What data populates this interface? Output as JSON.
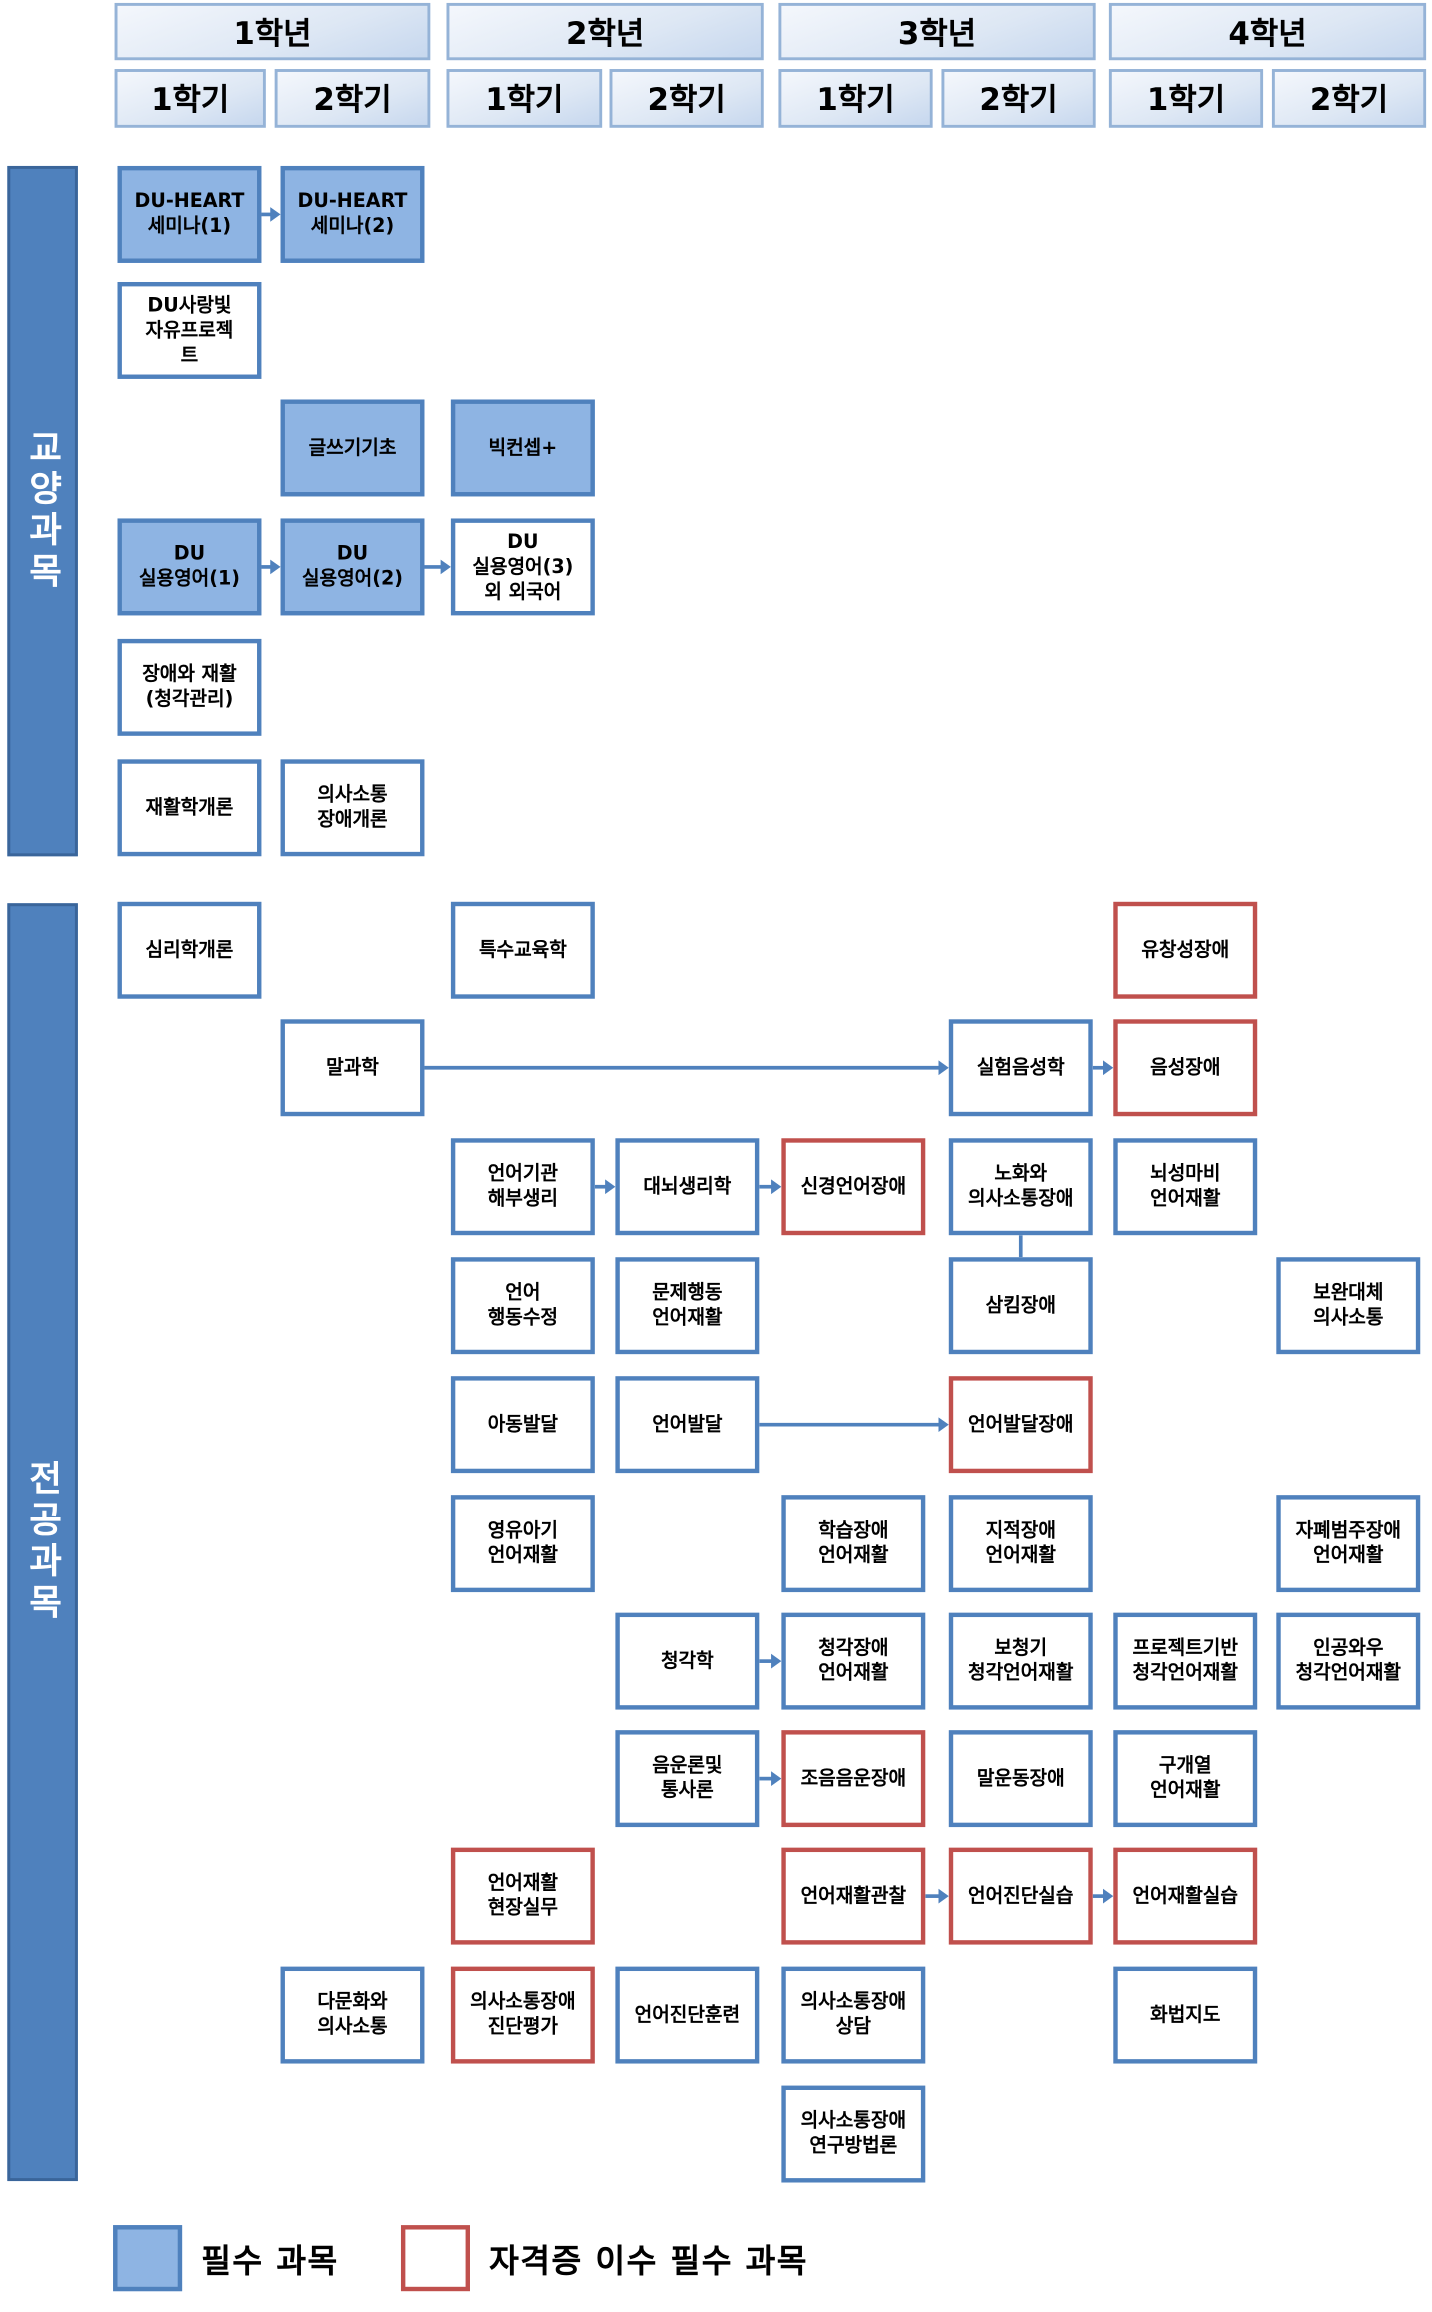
{
  "colors": {
    "required_fill": "#8eb4e3",
    "border_blue": "#4f81bd",
    "certificate_red": "#c0504d",
    "category_bar": "#4f81bd"
  },
  "header": {
    "years": [
      "1학년",
      "2학년",
      "3학년",
      "4학년"
    ],
    "semesters": [
      "1학기",
      "2학기",
      "1학기",
      "2학기",
      "1학기",
      "2학기",
      "1학기",
      "2학기"
    ]
  },
  "categories": {
    "liberal": "교양과목",
    "major": "전공과목"
  },
  "liberal_rows": [
    [
      {
        "name": "DU-HEART\n세미나(1)",
        "term": "1-1",
        "type": "required"
      },
      {
        "name": "DU-HEART\n세미나(2)",
        "term": "1-2",
        "type": "required"
      }
    ],
    [
      {
        "name": "DU사랑빛\n자유프로젝\n트",
        "term": "1-1",
        "type": "normal"
      }
    ],
    [
      {
        "name": "글쓰기기초",
        "term": "1-2",
        "type": "required"
      },
      {
        "name": "빅컨셉+",
        "term": "2-1",
        "type": "required"
      }
    ],
    [
      {
        "name": "DU\n실용영어(1)",
        "term": "1-1",
        "type": "required"
      },
      {
        "name": "DU\n실용영어(2)",
        "term": "1-2",
        "type": "required"
      },
      {
        "name": "DU\n실용영어(3)\n외 외국어",
        "term": "2-1",
        "type": "normal"
      }
    ],
    [
      {
        "name": "장애와 재활\n(청각관리)",
        "term": "1-1",
        "type": "normal"
      }
    ],
    [
      {
        "name": "재활학개론",
        "term": "1-1",
        "type": "normal"
      },
      {
        "name": "의사소통\n장애개론",
        "term": "1-2",
        "type": "normal"
      }
    ]
  ],
  "major_rows": [
    [
      {
        "name": "심리학개론",
        "term": "1-1",
        "type": "normal"
      },
      {
        "name": "특수교육학",
        "term": "2-1",
        "type": "normal"
      },
      {
        "name": "유창성장애",
        "term": "4-1",
        "type": "certificate"
      }
    ],
    [
      {
        "name": "말과학",
        "term": "1-2",
        "type": "normal"
      },
      {
        "name": "실험음성학",
        "term": "3-2",
        "type": "normal"
      },
      {
        "name": "음성장애",
        "term": "4-1",
        "type": "certificate"
      }
    ],
    [
      {
        "name": "언어기관\n해부생리",
        "term": "2-1",
        "type": "normal"
      },
      {
        "name": "대뇌생리학",
        "term": "2-2",
        "type": "normal"
      },
      {
        "name": "신경언어장애",
        "term": "3-1",
        "type": "certificate"
      },
      {
        "name": "노화와\n의사소통장애",
        "term": "3-2",
        "type": "normal"
      },
      {
        "name": "뇌성마비\n언어재활",
        "term": "4-1",
        "type": "normal"
      }
    ],
    [
      {
        "name": "언어\n행동수정",
        "term": "2-1",
        "type": "normal"
      },
      {
        "name": "문제행동\n언어재활",
        "term": "2-2",
        "type": "normal"
      },
      {
        "name": "삼킴장애",
        "term": "3-2",
        "type": "normal"
      },
      {
        "name": "보완대체\n의사소통",
        "term": "4-2",
        "type": "normal"
      }
    ],
    [
      {
        "name": "아동발달",
        "term": "2-1",
        "type": "normal"
      },
      {
        "name": "언어발달",
        "term": "2-2",
        "type": "normal"
      },
      {
        "name": "언어발달장애",
        "term": "3-2",
        "type": "certificate"
      }
    ],
    [
      {
        "name": "영유아기\n언어재활",
        "term": "2-1",
        "type": "normal"
      },
      {
        "name": "학습장애\n언어재활",
        "term": "3-1",
        "type": "normal"
      },
      {
        "name": "지적장애\n언어재활",
        "term": "3-2",
        "type": "normal"
      },
      {
        "name": "자폐범주장애\n언어재활",
        "term": "4-2",
        "type": "normal"
      }
    ],
    [
      {
        "name": "청각학",
        "term": "2-2",
        "type": "normal"
      },
      {
        "name": "청각장애\n언어재활",
        "term": "3-1",
        "type": "normal"
      },
      {
        "name": "보청기\n청각언어재활",
        "term": "3-2",
        "type": "normal"
      },
      {
        "name": "프로젝트기반\n청각언어재활",
        "term": "4-1",
        "type": "normal"
      },
      {
        "name": "인공와우\n청각언어재활",
        "term": "4-2",
        "type": "normal"
      }
    ],
    [
      {
        "name": "음운론및\n통사론",
        "term": "2-2",
        "type": "normal"
      },
      {
        "name": "조음음운장애",
        "term": "3-1",
        "type": "certificate"
      },
      {
        "name": "말운동장애",
        "term": "3-2",
        "type": "normal"
      },
      {
        "name": "구개열\n언어재활",
        "term": "4-1",
        "type": "normal"
      }
    ],
    [
      {
        "name": "언어재활\n현장실무",
        "term": "2-1",
        "type": "certificate"
      },
      {
        "name": "언어재활관찰",
        "term": "3-1",
        "type": "certificate"
      },
      {
        "name": "언어진단실습",
        "term": "3-2",
        "type": "certificate"
      },
      {
        "name": "언어재활실습",
        "term": "4-1",
        "type": "certificate"
      }
    ],
    [
      {
        "name": "다문화와\n의사소통",
        "term": "1-2",
        "type": "normal"
      },
      {
        "name": "의사소통장애\n진단평가",
        "term": "2-1",
        "type": "certificate"
      },
      {
        "name": "언어진단훈련",
        "term": "2-2",
        "type": "normal"
      },
      {
        "name": "의사소통장애\n상담",
        "term": "3-1",
        "type": "normal"
      },
      {
        "name": "화법지도",
        "term": "4-1",
        "type": "normal"
      }
    ],
    [
      {
        "name": "의사소통장애\n연구방법론",
        "term": "3-1",
        "type": "normal"
      }
    ]
  ],
  "arrows": [
    {
      "section": "liberal",
      "row": 0,
      "from": "1-1",
      "to": "1-2"
    },
    {
      "section": "liberal",
      "row": 3,
      "from": "1-1",
      "to": "1-2"
    },
    {
      "section": "liberal",
      "row": 3,
      "from": "1-2",
      "to": "2-1"
    },
    {
      "section": "major",
      "row": 1,
      "from": "1-2",
      "to": "3-2"
    },
    {
      "section": "major",
      "row": 1,
      "from": "3-2",
      "to": "4-1"
    },
    {
      "section": "major",
      "row": 2,
      "from": "2-1",
      "to": "2-2"
    },
    {
      "section": "major",
      "row": 2,
      "from": "2-2",
      "to": "3-1"
    },
    {
      "section": "major",
      "row": 4,
      "from": "2-2",
      "to": "3-2"
    },
    {
      "section": "major",
      "row": 6,
      "from": "2-2",
      "to": "3-1"
    },
    {
      "section": "major",
      "row": 7,
      "from": "2-2",
      "to": "3-1"
    },
    {
      "section": "major",
      "row": 8,
      "from": "3-1",
      "to": "3-2"
    },
    {
      "section": "major",
      "row": 8,
      "from": "3-2",
      "to": "4-1"
    }
  ],
  "connectors": [
    {
      "section": "major",
      "term": "3-2",
      "from_row": 2,
      "to_row": 3
    }
  ],
  "legend": {
    "required": "필수 과목",
    "certificate": "자격증 이수 필수 과목"
  }
}
